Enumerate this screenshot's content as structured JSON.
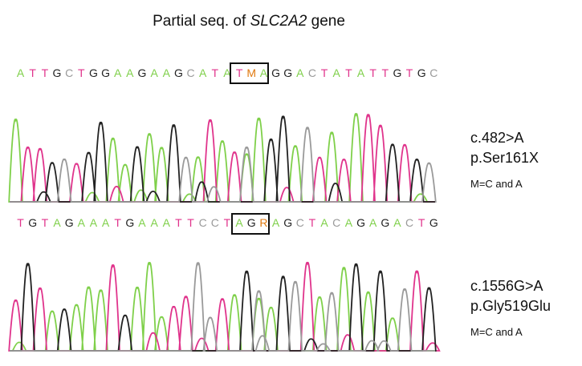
{
  "title": {
    "prefix": "Partial seq. of ",
    "gene": "SLC2A2",
    "suffix": " gene"
  },
  "colors": {
    "A": "#7fd04a",
    "T": "#e0348c",
    "G": "#222222",
    "C": "#9a9a9a",
    "ambiguous": "#e07a10"
  },
  "panel1": {
    "sequence": "ATTGCTGGAAGAAGCATATMAGGACTATATTGTGC",
    "boxed": "TMA",
    "mutation": "c.482>A",
    "protein": "p.Ser161X",
    "note": "M=C and A"
  },
  "panel2": {
    "sequence": "TGTAGAAATGAAATTCCTAGRAGCTACAGAGACTG",
    "boxed": "GRA",
    "mutation": "c.1556G>A",
    "protein": "p.Gly519Glu",
    "note": "M=C and A"
  }
}
